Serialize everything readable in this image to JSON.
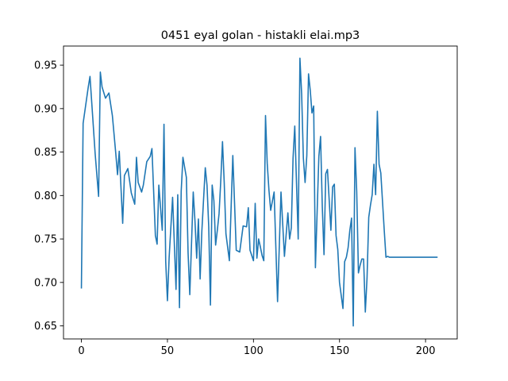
{
  "chart_data": {
    "type": "line",
    "title": "0451 eyal golan - histakli elai.mp3",
    "xlabel": "",
    "ylabel": "",
    "xlim": [
      -10.4,
      218.4
    ],
    "ylim": [
      0.635,
      0.972
    ],
    "xticks": [
      0,
      50,
      100,
      150,
      200
    ],
    "yticks": [
      0.65,
      0.7,
      0.75,
      0.8,
      0.85,
      0.9,
      0.95
    ],
    "grid": false,
    "line_color": "#1f77b4",
    "series": [
      {
        "x": [
          0,
          1,
          4,
          5,
          8,
          10,
          11,
          12,
          14,
          16,
          18,
          20,
          21,
          22,
          24,
          25,
          27,
          29,
          31,
          32,
          33,
          35,
          36,
          38,
          40,
          41,
          43,
          44,
          45,
          47,
          48,
          49,
          50,
          51,
          53,
          55,
          56,
          57,
          58,
          59,
          61,
          62,
          63,
          65,
          66,
          67,
          68,
          69,
          70,
          72,
          73,
          74,
          75,
          76,
          77,
          78,
          79,
          80,
          81,
          82,
          83,
          84,
          86,
          88,
          90,
          92,
          94,
          96,
          97,
          98,
          100,
          101,
          102,
          103,
          104,
          105,
          106,
          107,
          108,
          109,
          110,
          112,
          114,
          116,
          118,
          120,
          121,
          122,
          123,
          124,
          126,
          127,
          128,
          129,
          130,
          131,
          132,
          133,
          134,
          135,
          136,
          138,
          139,
          140,
          141,
          142,
          143,
          145,
          146,
          147,
          148,
          149,
          150,
          152,
          153,
          154,
          155,
          156,
          157,
          158,
          159,
          160,
          161,
          162,
          163,
          164,
          165,
          166,
          167,
          168,
          169,
          170,
          171,
          172,
          173,
          174,
          175,
          176,
          177,
          178,
          179,
          180,
          181,
          182,
          183,
          184,
          185,
          186,
          187,
          188,
          189,
          190,
          191,
          192,
          193,
          194,
          195,
          196,
          197,
          198,
          199,
          200,
          201,
          202,
          203,
          204,
          205,
          206,
          207
        ],
        "y": [
          0.693,
          0.883,
          0.925,
          0.937,
          0.848,
          0.799,
          0.942,
          0.925,
          0.912,
          0.918,
          0.892,
          0.848,
          0.824,
          0.851,
          0.768,
          0.823,
          0.831,
          0.803,
          0.79,
          0.844,
          0.815,
          0.804,
          0.812,
          0.839,
          0.845,
          0.854,
          0.754,
          0.744,
          0.812,
          0.76,
          0.882,
          0.724,
          0.679,
          0.729,
          0.798,
          0.692,
          0.801,
          0.671,
          0.805,
          0.844,
          0.821,
          0.734,
          0.686,
          0.804,
          0.771,
          0.728,
          0.773,
          0.704,
          0.759,
          0.832,
          0.812,
          0.764,
          0.674,
          0.812,
          0.794,
          0.743,
          0.76,
          0.779,
          0.817,
          0.862,
          0.815,
          0.756,
          0.725,
          0.846,
          0.737,
          0.735,
          0.765,
          0.764,
          0.786,
          0.737,
          0.725,
          0.791,
          0.728,
          0.75,
          0.741,
          0.731,
          0.725,
          0.892,
          0.837,
          0.806,
          0.783,
          0.804,
          0.678,
          0.804,
          0.73,
          0.78,
          0.75,
          0.763,
          0.843,
          0.88,
          0.75,
          0.958,
          0.917,
          0.843,
          0.815,
          0.846,
          0.94,
          0.921,
          0.895,
          0.903,
          0.717,
          0.845,
          0.868,
          0.787,
          0.732,
          0.825,
          0.83,
          0.76,
          0.81,
          0.813,
          0.754,
          0.738,
          0.7,
          0.67,
          0.724,
          0.729,
          0.74,
          0.76,
          0.774,
          0.65,
          0.855,
          0.805,
          0.711,
          0.72,
          0.727,
          0.727,
          0.666,
          0.705,
          0.775,
          0.789,
          0.801,
          0.836,
          0.801,
          0.897,
          0.836,
          0.826,
          0.793,
          0.76,
          0.729,
          0.73,
          0.729,
          0.729,
          0.729,
          0.729,
          0.729,
          0.729,
          0.729,
          0.729,
          0.729,
          0.729,
          0.729,
          0.729,
          0.729,
          0.729,
          0.729,
          0.729,
          0.729,
          0.729,
          0.729,
          0.729,
          0.729,
          0.729,
          0.729,
          0.729,
          0.729,
          0.729,
          0.729,
          0.729,
          0.729
        ]
      }
    ]
  }
}
